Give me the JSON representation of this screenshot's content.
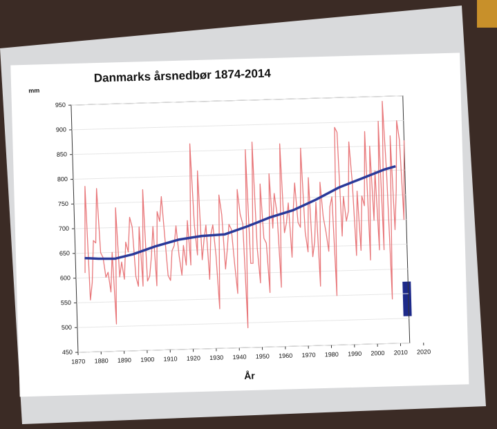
{
  "chart_data": {
    "type": "line",
    "title": "Danmarks årsnedbør 1874-2014",
    "y_unit": "mm",
    "x_label": "År",
    "xlim": [
      1870,
      2020
    ],
    "xticks": [
      1870,
      1880,
      1890,
      1900,
      1910,
      1920,
      1930,
      1940,
      1950,
      1960,
      1970,
      1980,
      1990,
      2000,
      2010,
      2020
    ],
    "ylim": [
      450,
      950
    ],
    "yticks": [
      450,
      500,
      550,
      600,
      650,
      700,
      750,
      800,
      850,
      900,
      950
    ],
    "grid": true,
    "series": [
      {
        "color": "#e8777a",
        "x": [
          1874,
          1875,
          1876,
          1877,
          1878,
          1879,
          1880,
          1881,
          1882,
          1883,
          1884,
          1885,
          1886,
          1887,
          1888,
          1889,
          1890,
          1891,
          1892,
          1893,
          1894,
          1895,
          1896,
          1897,
          1898,
          1899,
          1900,
          1901,
          1902,
          1903,
          1904,
          1905,
          1906,
          1907,
          1908,
          1909,
          1910,
          1911,
          1912,
          1913,
          1914,
          1915,
          1916,
          1917,
          1918,
          1919,
          1920,
          1921,
          1922,
          1923,
          1924,
          1925,
          1926,
          1927,
          1928,
          1929,
          1930,
          1931,
          1932,
          1933,
          1934,
          1935,
          1936,
          1937,
          1938,
          1939,
          1940,
          1941,
          1942,
          1943,
          1944,
          1945,
          1946,
          1947,
          1948,
          1949,
          1950,
          1951,
          1952,
          1953,
          1954,
          1955,
          1956,
          1957,
          1958,
          1959,
          1960,
          1961,
          1962,
          1963,
          1964,
          1965,
          1966,
          1967,
          1968,
          1969,
          1970,
          1971,
          1972,
          1973,
          1974,
          1975,
          1976,
          1977,
          1978,
          1979,
          1980,
          1981,
          1982,
          1983,
          1984,
          1985,
          1986,
          1987,
          1988,
          1989,
          1990,
          1991,
          1992,
          1993,
          1994,
          1995,
          1996,
          1997,
          1998,
          1999,
          2000,
          2001,
          2002,
          2003,
          2004,
          2005,
          2006,
          2007,
          2008,
          2009,
          2010,
          2011,
          2012,
          2013,
          2014
        ],
        "values": [
          610,
          785,
          555,
          590,
          675,
          670,
          780,
          650,
          640,
          600,
          610,
          570,
          650,
          505,
          740,
          600,
          630,
          595,
          670,
          650,
          720,
          700,
          600,
          580,
          700,
          580,
          775,
          590,
          600,
          640,
          700,
          580,
          730,
          710,
          760,
          680,
          600,
          590,
          650,
          660,
          700,
          640,
          600,
          660,
          620,
          710,
          620,
          865,
          700,
          640,
          810,
          630,
          670,
          700,
          590,
          680,
          700,
          640,
          530,
          760,
          720,
          610,
          650,
          700,
          690,
          620,
          560,
          770,
          720,
          700,
          490,
          850,
          620,
          620,
          865,
          650,
          580,
          780,
          670,
          660,
          560,
          800,
          690,
          760,
          720,
          570,
          860,
          680,
          700,
          740,
          630,
          720,
          780,
          700,
          690,
          850,
          680,
          640,
          790,
          630,
          660,
          740,
          570,
          780,
          710,
          680,
          640,
          730,
          750,
          550,
          890,
          880,
          670,
          750,
          700,
          720,
          860,
          780,
          630,
          760,
          640,
          750,
          730,
          880,
          620,
          850,
          700,
          800,
          640,
          900,
          640,
          940,
          800,
          540,
          870,
          680,
          760,
          900,
          860,
          700,
          860
        ]
      },
      {
        "color": "#2a3a9a",
        "x": [
          1874,
          1880,
          1887,
          1895,
          1905,
          1915,
          1925,
          1935,
          1945,
          1955,
          1965,
          1975,
          1985,
          1995,
          2005,
          2010
        ],
        "values": [
          640,
          638,
          637,
          645,
          660,
          672,
          678,
          680,
          695,
          712,
          725,
          745,
          768,
          785,
          802,
          808
        ]
      }
    ]
  }
}
